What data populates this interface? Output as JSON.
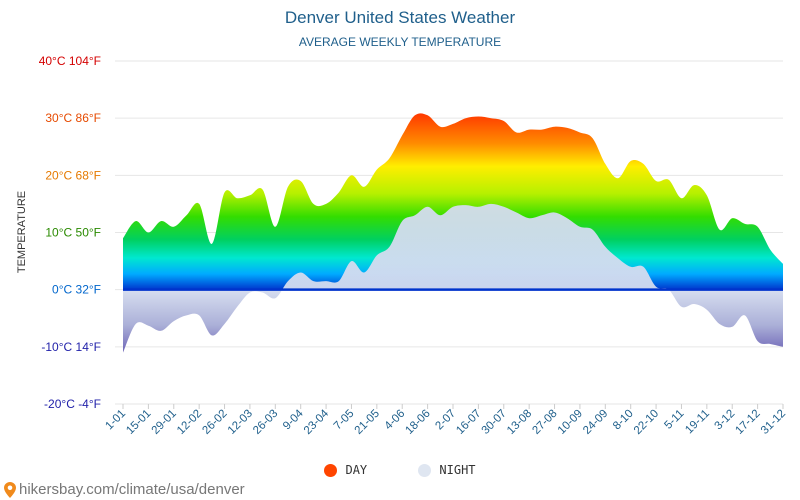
{
  "chart_data": {
    "type": "area",
    "title": "Denver United States Weather",
    "subtitle": "AVERAGE WEEKLY TEMPERATURE",
    "ylabel": "TEMPERATURE",
    "ylim": [
      -20,
      40
    ],
    "y_ticks": [
      {
        "value": 40,
        "label": "40°C 104°F",
        "color": "#d40000"
      },
      {
        "value": 30,
        "label": "30°C 86°F",
        "color": "#e64a00"
      },
      {
        "value": 20,
        "label": "20°C 68°F",
        "color": "#e67a00"
      },
      {
        "value": 10,
        "label": "10°C 50°F",
        "color": "#2a8a00"
      },
      {
        "value": 0,
        "label": "0°C 32°F",
        "color": "#0066cc"
      },
      {
        "value": -10,
        "label": "-10°C 14°F",
        "color": "#2222aa"
      },
      {
        "value": -20,
        "label": "-20°C -4°F",
        "color": "#2222aa"
      }
    ],
    "x_tick_labels": [
      "1-01",
      "15-01",
      "29-01",
      "12-02",
      "26-02",
      "12-03",
      "26-03",
      "9-04",
      "23-04",
      "7-05",
      "21-05",
      "4-06",
      "18-06",
      "2-07",
      "16-07",
      "30-07",
      "13-08",
      "27-08",
      "10-09",
      "24-09",
      "8-10",
      "22-10",
      "5-11",
      "19-11",
      "3-12",
      "17-12",
      "31-12"
    ],
    "x": [
      "1-01",
      "8-01",
      "15-01",
      "22-01",
      "29-01",
      "5-02",
      "12-02",
      "19-02",
      "26-02",
      "5-03",
      "12-03",
      "19-03",
      "26-03",
      "2-04",
      "9-04",
      "16-04",
      "23-04",
      "30-04",
      "7-05",
      "14-05",
      "21-05",
      "28-05",
      "4-06",
      "11-06",
      "18-06",
      "25-06",
      "2-07",
      "9-07",
      "16-07",
      "23-07",
      "30-07",
      "6-08",
      "13-08",
      "20-08",
      "27-08",
      "3-09",
      "10-09",
      "17-09",
      "24-09",
      "1-10",
      "8-10",
      "15-10",
      "22-10",
      "29-10",
      "5-11",
      "12-11",
      "19-11",
      "26-11",
      "3-12",
      "10-12",
      "17-12",
      "24-12",
      "31-12"
    ],
    "series": [
      {
        "name": "DAY",
        "color": "#ff4500",
        "values": [
          9,
          12,
          10,
          12,
          11,
          13,
          15,
          8,
          17,
          16,
          16.5,
          17.5,
          11,
          18,
          19,
          15,
          15,
          17,
          20,
          18,
          21,
          23,
          27,
          30.5,
          30.5,
          28.5,
          29,
          30,
          30.3,
          30,
          29.5,
          27.5,
          28,
          28,
          28.5,
          28.3,
          27.5,
          26.5,
          22,
          19.5,
          22.5,
          22,
          19,
          19.2,
          16,
          18.3,
          16.5,
          10.5,
          12.5,
          11.5,
          11,
          7,
          4.5
        ]
      },
      {
        "name": "NIGHT",
        "color": "#dfe6f1",
        "values": [
          -11,
          -6,
          -6.3,
          -7.2,
          -5.5,
          -4.5,
          -4.5,
          -8,
          -6,
          -3,
          -0.5,
          -0.5,
          -1.5,
          1.5,
          3,
          1.5,
          1.5,
          1.5,
          5,
          3,
          6,
          7.5,
          12,
          13,
          14.5,
          13,
          14.5,
          14.8,
          14.5,
          15,
          14.5,
          13.5,
          12.5,
          13,
          13.5,
          12.5,
          11,
          10.5,
          7.5,
          5.5,
          4,
          4,
          0.5,
          0,
          -3,
          -2.5,
          -3.5,
          -6,
          -6.5,
          -4.5,
          -9,
          -9.5,
          -10
        ]
      }
    ],
    "legend": [
      "DAY",
      "NIGHT"
    ],
    "grid": true,
    "legend_position": "bottom"
  },
  "source": "hikersbay.com/climate/usa/denver"
}
